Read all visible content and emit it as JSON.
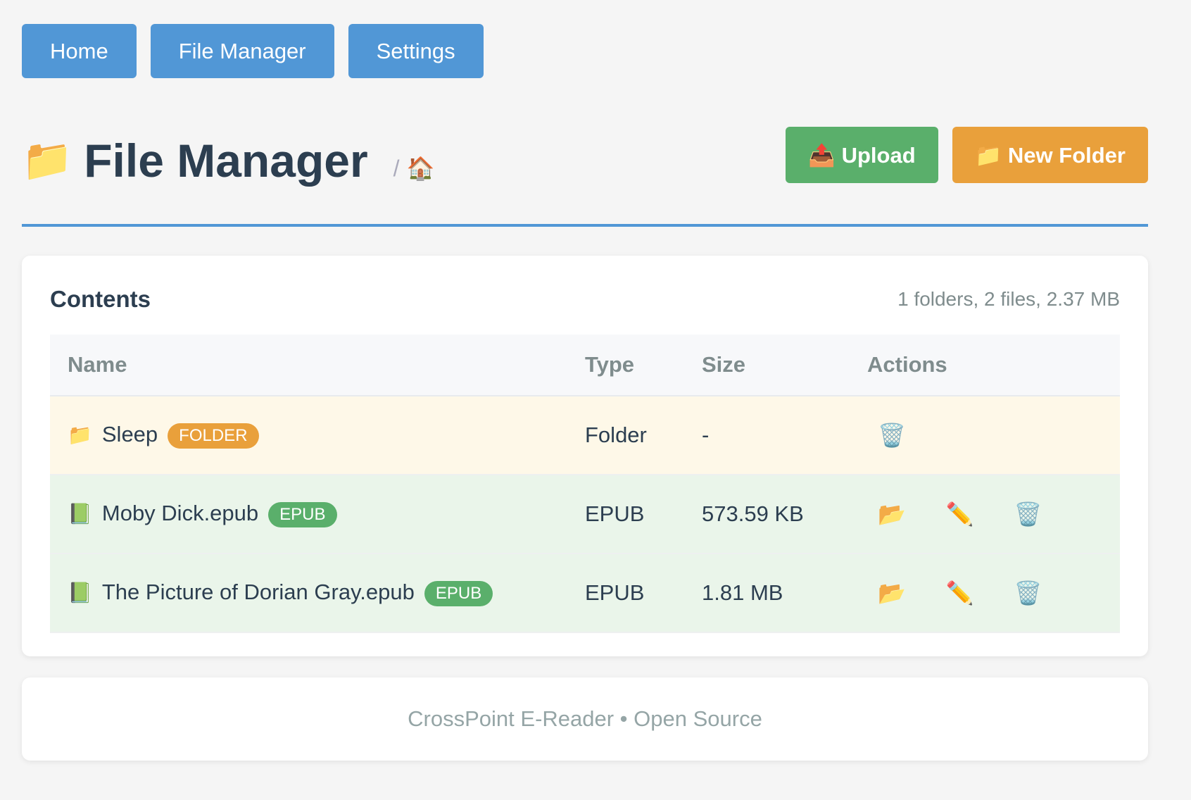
{
  "nav": [
    {
      "label": "Home"
    },
    {
      "label": "File Manager"
    },
    {
      "label": "Settings"
    }
  ],
  "header": {
    "icon": "folder-icon",
    "title": "File Manager",
    "breadcrumb_sep": "/",
    "breadcrumb_icon": "home-icon"
  },
  "toolbar": {
    "upload_label": "Upload",
    "new_folder_label": "New Folder"
  },
  "contents": {
    "title": "Contents",
    "summary": "1 folders, 2 files, 2.37 MB",
    "columns": [
      "Name",
      "Type",
      "Size",
      "Actions"
    ],
    "rows": [
      {
        "name": "Sleep",
        "badge": "FOLDER",
        "type": "Folder",
        "size": "-",
        "kind": "folder"
      },
      {
        "name": "Moby Dick.epub",
        "badge": "EPUB",
        "type": "EPUB",
        "size": "573.59 KB",
        "kind": "file"
      },
      {
        "name": "The Picture of Dorian Gray.epub",
        "badge": "EPUB",
        "type": "EPUB",
        "size": "1.81 MB",
        "kind": "file"
      }
    ]
  },
  "footer": {
    "text": "CrossPoint E-Reader • Open Source"
  },
  "colors": {
    "primary": "#5197d6",
    "success": "#5aaf6b",
    "warning": "#e9a03b"
  }
}
